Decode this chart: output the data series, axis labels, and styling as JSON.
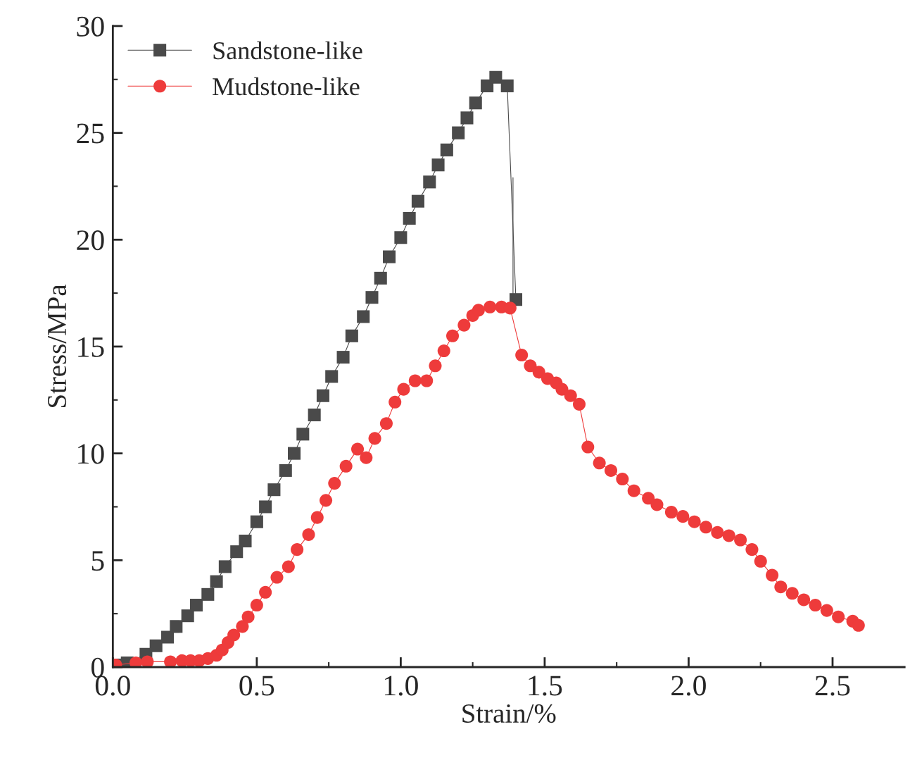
{
  "chart_data": {
    "type": "line",
    "xlabel": "Strain/%",
    "ylabel": "Stress/MPa",
    "xlim": [
      0,
      2.75
    ],
    "ylim": [
      0,
      30
    ],
    "xticks": [
      {
        "value": 0,
        "label": "0.0"
      },
      {
        "value": 0.25,
        "label": null
      },
      {
        "value": 0.5,
        "label": "0.5"
      },
      {
        "value": 0.75,
        "label": null
      },
      {
        "value": 1,
        "label": "1.0"
      },
      {
        "value": 1.25,
        "label": null
      },
      {
        "value": 1.5,
        "label": "1.5"
      },
      {
        "value": 1.75,
        "label": null
      },
      {
        "value": 2,
        "label": "2.0"
      },
      {
        "value": 2.25,
        "label": null
      },
      {
        "value": 2.5,
        "label": "2.5"
      }
    ],
    "yticks": [
      0,
      {
        "value": 2.5,
        "label": null
      },
      5,
      {
        "value": 7.5,
        "label": null
      },
      10,
      {
        "value": 12.5,
        "label": null
      },
      15,
      {
        "value": 17.5,
        "label": null
      },
      20,
      {
        "value": 22.5,
        "label": null
      },
      25,
      {
        "value": 27.5,
        "label": null
      },
      30
    ],
    "grid": false,
    "legend": "top left",
    "line_style": "solid",
    "series": [
      {
        "name": "Sandstone-like",
        "color": "#4a4a4a",
        "marker": "square",
        "x": [
          0.01,
          0.05,
          0.08,
          0.115,
          0.15,
          0.19,
          0.22,
          0.26,
          0.29,
          0.33,
          0.36,
          0.39,
          0.43,
          0.46,
          0.5,
          0.53,
          0.56,
          0.6,
          0.63,
          0.66,
          0.7,
          0.73,
          0.76,
          0.8,
          0.83,
          0.87,
          0.9,
          0.93,
          0.96,
          1.0,
          1.03,
          1.06,
          1.1,
          1.13,
          1.16,
          1.2,
          1.23,
          1.26,
          1.3,
          1.33,
          1.37,
          1.4
        ],
        "values": [
          0.1,
          0.2,
          null,
          0.6,
          1.0,
          1.4,
          1.9,
          2.4,
          2.9,
          3.4,
          4.0,
          4.7,
          5.4,
          5.9,
          6.8,
          7.5,
          8.3,
          9.2,
          10.0,
          10.9,
          11.8,
          12.7,
          13.6,
          14.5,
          15.5,
          16.4,
          17.3,
          18.2,
          19.2,
          20.1,
          21.0,
          21.8,
          22.7,
          23.5,
          24.2,
          25.0,
          25.7,
          26.4,
          27.2,
          27.6,
          27.2,
          17.2
        ]
      },
      {
        "color": "#4a4a4a",
        "marker": "none",
        "x": [
          1.39,
          1.39
        ],
        "values": [
          22.9,
          17.2
        ]
      },
      {
        "name": "Mudstone-like",
        "color": "#ee3b3b",
        "marker": "circle",
        "x": [
          0.01,
          0.08,
          0.12,
          0.2,
          0.24,
          0.27,
          0.3,
          0.33,
          0.36,
          0.38,
          0.4,
          0.42,
          0.45,
          0.47,
          0.5,
          0.53,
          0.57,
          0.61,
          0.64,
          0.68,
          0.71,
          0.74,
          0.77,
          0.81,
          0.85,
          0.88,
          0.91,
          0.95,
          0.98,
          1.01,
          1.05,
          1.09,
          1.12,
          1.15,
          1.18,
          1.22,
          1.25,
          1.27,
          1.31,
          1.35,
          1.38,
          1.42,
          1.45,
          1.48,
          1.51,
          1.54,
          1.56,
          1.59,
          1.62,
          1.65,
          1.69,
          1.73,
          1.77,
          1.81,
          1.86,
          1.89,
          1.94,
          1.98,
          2.02,
          2.06,
          2.1,
          2.14,
          2.18,
          2.22,
          2.25,
          2.29,
          2.32,
          2.36,
          2.4,
          2.44,
          2.48,
          2.52,
          2.57,
          2.59
        ],
        "values": [
          0.1,
          0.2,
          0.25,
          0.25,
          0.3,
          0.3,
          0.3,
          0.4,
          0.55,
          0.8,
          1.15,
          1.5,
          1.9,
          2.35,
          2.9,
          3.5,
          4.2,
          4.7,
          5.5,
          6.2,
          7.0,
          7.8,
          8.6,
          9.4,
          10.2,
          9.8,
          10.7,
          11.4,
          12.4,
          13.0,
          13.4,
          13.4,
          14.1,
          14.8,
          15.5,
          16.0,
          16.45,
          16.7,
          16.85,
          16.85,
          16.8,
          14.6,
          14.1,
          13.8,
          13.5,
          13.3,
          13.0,
          12.7,
          12.3,
          10.3,
          9.55,
          9.2,
          8.8,
          8.25,
          7.9,
          7.6,
          7.25,
          7.05,
          6.8,
          6.55,
          6.3,
          6.15,
          5.95,
          5.5,
          4.95,
          4.3,
          3.75,
          3.45,
          3.15,
          2.9,
          2.65,
          2.35,
          2.15,
          1.95
        ]
      }
    ]
  }
}
